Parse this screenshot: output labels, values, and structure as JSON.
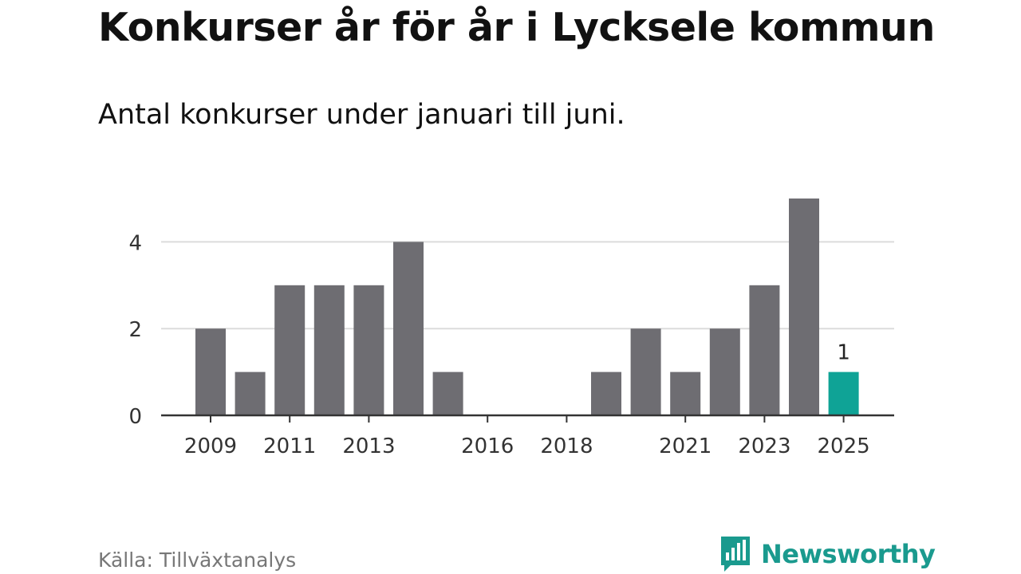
{
  "header": {
    "title": "Konkurser år för år i Lycksele kommun",
    "subtitle": "Antal konkurser under januari till juni."
  },
  "footer": {
    "source": "Källa: Tillväxtanalys",
    "brand": "Newsworthy",
    "brand_icon": "bar-chart-speech-bubble-icon"
  },
  "colors": {
    "bar": "#6e6d72",
    "highlight": "#0fa396",
    "grid": "#dcdcdc",
    "axis": "#333333",
    "brand": "#1a9a8e"
  },
  "chart_data": {
    "type": "bar",
    "title": "Konkurser år för år i Lycksele kommun",
    "subtitle": "Antal konkurser under januari till juni.",
    "xlabel": "",
    "ylabel": "",
    "categories": [
      "2009",
      "2010",
      "2011",
      "2012",
      "2013",
      "2014",
      "2015",
      "2016",
      "2017",
      "2018",
      "2019",
      "2020",
      "2021",
      "2022",
      "2023",
      "2024",
      "2025"
    ],
    "values": [
      2,
      1,
      3,
      3,
      3,
      4,
      1,
      0,
      0,
      0,
      1,
      2,
      1,
      2,
      3,
      5,
      1
    ],
    "highlight_index": 16,
    "highlight_label": "1",
    "x_tick_labels": [
      "2009",
      "",
      "2011",
      "",
      "2013",
      "",
      "",
      "2016",
      "",
      "2018",
      "",
      "",
      "2021",
      "",
      "2023",
      "",
      "2025"
    ],
    "y_ticks": [
      0,
      2,
      4
    ],
    "ylim": [
      0,
      5
    ],
    "grid": true,
    "legend": "none"
  }
}
